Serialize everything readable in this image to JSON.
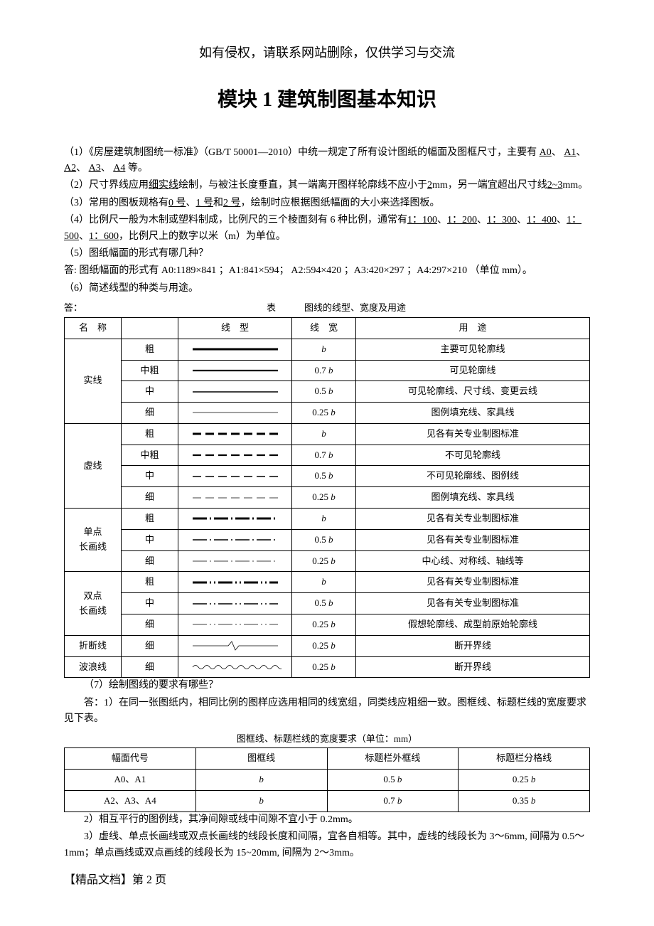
{
  "notice": "如有侵权，请联系网站删除，仅供学习与交流",
  "title": "模块 1    建筑制图基本知识",
  "p1_a": "（1）《房屋建筑制图统一标准》（GB/T 50001—2010）中统一规定了所有设计图纸的幅面及图框尺寸，主要有",
  "p1_u": [
    "A0",
    "A1",
    "A2",
    "A3",
    "A4"
  ],
  "p1_b": "等。",
  "p2_a": "（2）尺寸界线应用",
  "p2_u1": "细实线",
  "p2_b": "绘制，与被注长度垂直，其一端离开图样轮廓线不应小于",
  "p2_u2": "2",
  "p2_c": "mm，另一端宜超出尺寸线",
  "p2_u3": "2~3",
  "p2_d": "mm。",
  "p3_a": "（3）常用的图板规格有",
  "p3_u": [
    "0 号",
    "1 号",
    "2 号"
  ],
  "p3_b": "，绘制时应根据图纸幅面的大小来选择图板。",
  "p4_a": "（4）比例尺一般为木制或塑料制成，比例尺的三个棱面刻有 6 种比例，通常有",
  "p4_u": [
    "1：100",
    "1：200",
    "1：300",
    "1：400",
    "1：500",
    "1：600"
  ],
  "p4_b": "，比例尺上的数字以米（m）为单位。",
  "p5": "（5）图纸幅面的形式有哪几种？",
  "p5ans": "答: 图纸幅面的形式有 A0:1189×841 ；A1:841×594； A2:594×420 ；A3:420×297 ；A4:297×210 （单位 mm）。",
  "p6": "（6）简述线型的种类与用途。",
  "p6ans": "答：",
  "t1_caption_lbl": "表",
  "t1_caption": "图线的线型、宽度及用途",
  "t1_headers": [
    "名　称",
    "",
    "线　型",
    "线　宽",
    "用　途"
  ],
  "t1_groups": [
    {
      "name": "实线",
      "rows": [
        {
          "sub": "粗",
          "style": "solid-thick",
          "w": "b",
          "use": "主要可见轮廓线"
        },
        {
          "sub": "中粗",
          "style": "solid-medthick",
          "w": "0.7 b",
          "use": "可见轮廓线"
        },
        {
          "sub": "中",
          "style": "solid-med",
          "w": "0.5 b",
          "use": "可见轮廓线、尺寸线、变更云线"
        },
        {
          "sub": "细",
          "style": "solid-thin",
          "w": "0.25 b",
          "use": "图例填充线、家具线"
        }
      ]
    },
    {
      "name": "虚线",
      "rows": [
        {
          "sub": "粗",
          "style": "dash-thick",
          "w": "b",
          "use": "见各有关专业制图标准"
        },
        {
          "sub": "中粗",
          "style": "dash-medthick",
          "w": "0.7 b",
          "use": "不可见轮廓线"
        },
        {
          "sub": "中",
          "style": "dash-med",
          "w": "0.5 b",
          "use": "不可见轮廓线、图例线"
        },
        {
          "sub": "细",
          "style": "dash-thin",
          "w": "0.25 b",
          "use": "图例填充线、家具线"
        }
      ]
    },
    {
      "name": "单点\n长画线",
      "rows": [
        {
          "sub": "粗",
          "style": "dotdash-thick",
          "w": "b",
          "use": "见各有关专业制图标准"
        },
        {
          "sub": "中",
          "style": "dotdash-med",
          "w": "0.5 b",
          "use": "见各有关专业制图标准"
        },
        {
          "sub": "细",
          "style": "dotdash-thin",
          "w": "0.25 b",
          "use": "中心线、对称线、轴线等"
        }
      ]
    },
    {
      "name": "双点\n长画线",
      "rows": [
        {
          "sub": "粗",
          "style": "ddotdash-thick",
          "w": "b",
          "use": "见各有关专业制图标准"
        },
        {
          "sub": "中",
          "style": "ddotdash-med",
          "w": "0.5 b",
          "use": "见各有关专业制图标准"
        },
        {
          "sub": "细",
          "style": "ddotdash-thin",
          "w": "0.25 b",
          "use": "假想轮廓线、成型前原始轮廓线"
        }
      ]
    },
    {
      "name": "折断线",
      "rows": [
        {
          "sub": "细",
          "style": "break-thin",
          "w": "0.25 b",
          "use": "断开界线"
        }
      ]
    },
    {
      "name": "波浪线",
      "rows": [
        {
          "sub": "细",
          "style": "wave-thin",
          "w": "0.25 b",
          "use": "断开界线"
        }
      ]
    }
  ],
  "p7": "（7）绘制图线的要求有哪些？",
  "p7ans1": "答：1）在同一张图纸内，相同比例的图样应选用相同的线宽组，同类线应粗细一致。图框线、标题栏线的宽度要求见下表。",
  "t2_caption": "图框线、标题栏线的宽度要求（单位：mm）",
  "t2_headers": [
    "幅面代号",
    "图框线",
    "标题栏外框线",
    "标题栏分格线"
  ],
  "t2_rows": [
    [
      "A0、A1",
      "b",
      "0.5 b",
      "0.25 b"
    ],
    [
      "A2、A3、A4",
      "b",
      "0.7 b",
      "0.35 b"
    ]
  ],
  "p7ans2": "2）相互平行的图例线，其净间隙或线中间隙不宜小于 0.2mm。",
  "p7ans3": "3）虚线、单点长画线或双点长画线的线段长度和间隔，宜各自相等。其中，虚线的线段长为 3～6mm, 间隔为 0.5～1mm；单点画线或双点画线的线段长为 15~20mm, 间隔为 2～3mm。",
  "footer": "【精品文档】第 2 页",
  "line_svg": {
    "width": 130,
    "height": 14,
    "colors": {
      "stroke": "#000"
    },
    "widths": {
      "thick": 3,
      "medthick": 2.2,
      "med": 1.5,
      "thin": 0.8
    }
  }
}
